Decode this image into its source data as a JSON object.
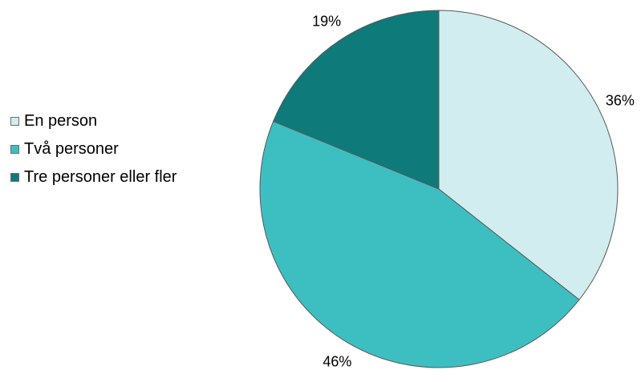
{
  "chart_data": {
    "type": "pie",
    "title": "",
    "categories": [
      "En person",
      "Två personer",
      "Tre personer eller fler"
    ],
    "values": [
      36,
      46,
      19
    ],
    "labels": [
      "36%",
      "46%",
      "19%"
    ],
    "colors": [
      "#d2edf0",
      "#3dbfc2",
      "#0e7a7a"
    ],
    "start_angle_deg": 0,
    "direction": "clockwise",
    "legend_position": "left"
  },
  "legend": {
    "items": [
      {
        "label": "En person",
        "color": "#d2edf0"
      },
      {
        "label": "Två personer",
        "color": "#3dbfc2"
      },
      {
        "label": "Tre personer eller fler",
        "color": "#0e7a7a"
      }
    ]
  }
}
